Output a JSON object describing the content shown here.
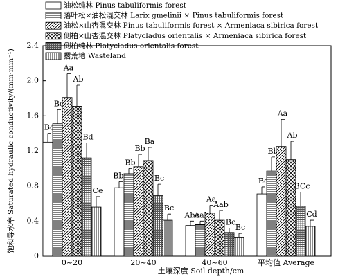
{
  "chart_data": {
    "type": "bar",
    "categories": [
      "0~20",
      "20~40",
      "40~60",
      "平均值 Average"
    ],
    "xlabel": "土壤深度 Soil depth/cm",
    "ylabel": "饱和导水率 Saturated hydraulic conductivity/(mm·min⁻¹)",
    "ylim": [
      0,
      2.4
    ],
    "yticks": [
      0,
      0.4,
      0.8,
      1.2,
      1.6,
      {
        "value": 2,
        "label": "2.0"
      },
      2.4
    ],
    "legend": "upper left",
    "series": [
      {
        "name": "油松纯林 Pinus tabuliformis forest",
        "color": "#ffffff",
        "values": [
          1.3,
          0.78,
          0.35,
          0.71
        ],
        "errors": [
          0.1,
          0.07,
          0.05,
          0.08
        ],
        "labels": [
          "Bc",
          "Bbc",
          "Abc",
          "Bc"
        ]
      },
      {
        "name": "落叶松×油松混交林 Larix gmelinii × Pinus tabuliformis forest",
        "color": "#000000",
        "values": [
          1.51,
          0.94,
          0.36,
          0.97
        ],
        "errors": [
          0.16,
          0.06,
          0.04,
          0.16
        ],
        "labels": [
          "Bc",
          "Bb",
          "Aab",
          "Bb"
        ]
      },
      {
        "name": "油松×山杏混交林 Pinus tabuliformis forest × Armeniaca sibirica forest",
        "color": "#000000",
        "values": [
          1.81,
          1.02,
          0.49,
          1.25
        ],
        "errors": [
          0.27,
          0.14,
          0.09,
          0.31
        ],
        "labels": [
          "Aa",
          "Bb",
          "Aa",
          "Aa"
        ]
      },
      {
        "name": "侧柏×山杏混交林 Platycladus orientalis × Armeniaca sibirica forest",
        "color": "#000000",
        "values": [
          1.71,
          1.09,
          0.41,
          1.1
        ],
        "errors": [
          0.24,
          0.15,
          0.11,
          0.21
        ],
        "labels": [
          "Ab",
          "Ba",
          "Aab",
          "Ab"
        ]
      },
      {
        "name": "侧柏纯林 Platycladus orientalis forest",
        "color": "#000000",
        "values": [
          1.12,
          0.69,
          0.27,
          0.57
        ],
        "errors": [
          0.17,
          0.13,
          0.05,
          0.16
        ],
        "labels": [
          "Bd",
          "Bc",
          "Bc",
          "BCc"
        ]
      },
      {
        "name": "撂荒地 Wasteland",
        "color": "#000000",
        "values": [
          0.56,
          0.41,
          0.21,
          0.34
        ],
        "errors": [
          0.12,
          0.07,
          0.05,
          0.07
        ],
        "labels": [
          "Ce",
          "Bc",
          "Bc",
          "Cd"
        ]
      }
    ]
  }
}
